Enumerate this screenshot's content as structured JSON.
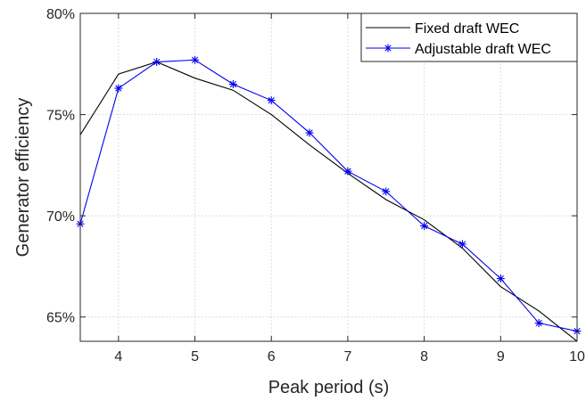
{
  "chart_data": {
    "type": "line",
    "xlabel": "Peak period (s)",
    "ylabel": "Generator efficiency",
    "xlim": [
      3.5,
      10
    ],
    "ylim": [
      63.8,
      80
    ],
    "xticks": [
      4,
      5,
      6,
      7,
      8,
      9,
      10
    ],
    "yticks": [
      65,
      70,
      75,
      80
    ],
    "xtick_labels": [
      "4",
      "5",
      "6",
      "7",
      "8",
      "9",
      "10"
    ],
    "ytick_labels": [
      "65%",
      "70%",
      "75%",
      "80%"
    ],
    "grid": true,
    "legend_position": "top-right",
    "series": [
      {
        "name": "Fixed draft WEC",
        "color": "#000000",
        "marker": "none",
        "x": [
          3.5,
          4,
          4.5,
          5,
          5.5,
          6,
          6.5,
          7,
          7.5,
          8,
          8.5,
          9,
          9.5,
          10
        ],
        "y": [
          74.0,
          77.0,
          77.6,
          76.8,
          76.2,
          75.0,
          73.5,
          72.1,
          70.8,
          69.8,
          68.4,
          66.5,
          65.3,
          63.8
        ]
      },
      {
        "name": "Adjustable draft WEC",
        "color": "#0000ee",
        "marker": "asterisk",
        "x": [
          3.5,
          4,
          4.5,
          5,
          5.5,
          6,
          6.5,
          7,
          7.5,
          8,
          8.5,
          9,
          9.5,
          10
        ],
        "y": [
          69.6,
          76.3,
          77.6,
          77.7,
          76.5,
          75.7,
          74.1,
          72.2,
          71.2,
          69.5,
          68.6,
          66.9,
          64.7,
          64.3
        ]
      }
    ]
  }
}
